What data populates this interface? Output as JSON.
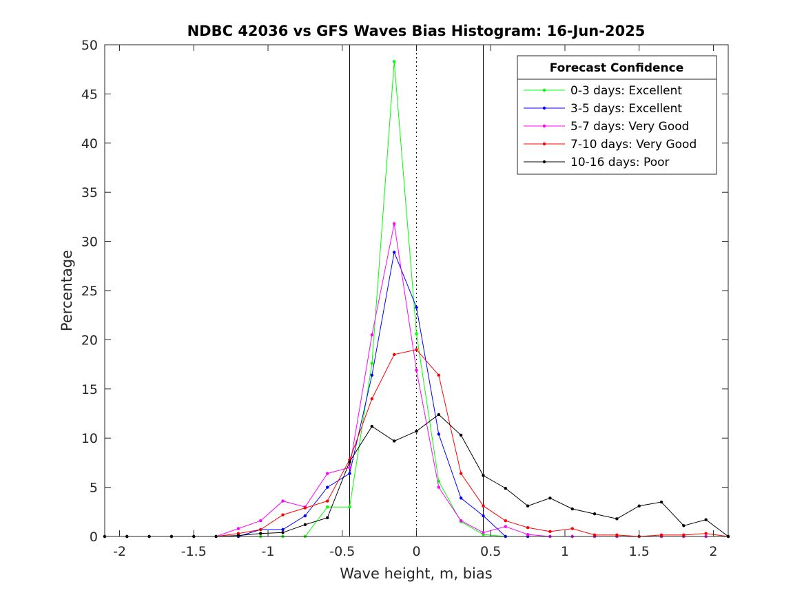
{
  "chart_data": {
    "type": "line",
    "title": "NDBC 42036 vs GFS Waves Bias Histogram: 16-Jun-2025",
    "xlabel": "Wave height, m, bias",
    "ylabel": "Percentage",
    "xlim": [
      -2.1,
      2.1
    ],
    "ylim": [
      0,
      50
    ],
    "xticks": [
      -2,
      -1.5,
      -1,
      -0.5,
      0,
      0.5,
      1,
      1.5,
      2
    ],
    "xtick_labels": [
      "-2",
      "-1.5",
      "-1",
      "-0.5",
      "0",
      "0.5",
      "1",
      "1.5",
      "2"
    ],
    "yticks": [
      0,
      5,
      10,
      15,
      20,
      25,
      30,
      35,
      40,
      45,
      50
    ],
    "ytick_labels": [
      "0",
      "5",
      "10",
      "15",
      "20",
      "25",
      "30",
      "35",
      "40",
      "45",
      "50"
    ],
    "grid": false,
    "legend": {
      "title": "Forecast Confidence",
      "placement": "top-right"
    },
    "reference_lines": {
      "solid_x": [
        -0.45,
        0.45
      ],
      "dotted_x": [
        0
      ]
    },
    "x": [
      -2.1,
      -1.95,
      -1.8,
      -1.65,
      -1.5,
      -1.35,
      -1.2,
      -1.05,
      -0.9,
      -0.75,
      -0.6,
      -0.45,
      -0.3,
      -0.15,
      0,
      0.15,
      0.3,
      0.45,
      0.6,
      0.75,
      0.9,
      1.05,
      1.2,
      1.35,
      1.5,
      1.65,
      1.8,
      1.95,
      2.1
    ],
    "series": [
      {
        "name": "0-3 days: Excellent",
        "color": "#00ff00",
        "values": [
          0,
          0,
          0,
          0,
          0,
          0,
          0,
          0,
          0,
          0,
          3.0,
          3.0,
          17.6,
          48.3,
          20.6,
          5.6,
          1.5,
          0.2,
          0,
          0,
          0,
          0,
          0,
          0,
          0,
          0,
          0,
          0,
          0
        ]
      },
      {
        "name": "3-5 days: Excellent",
        "color": "#0000ff",
        "values": [
          0,
          0,
          0,
          0,
          0,
          0,
          0,
          0.7,
          0.7,
          2.1,
          5.0,
          6.4,
          16.4,
          28.9,
          23.3,
          10.4,
          3.9,
          2.1,
          0,
          0,
          0,
          0,
          0,
          0,
          0,
          0,
          0,
          0,
          0
        ]
      },
      {
        "name": "5-7 days: Very Good",
        "color": "#ff00ff",
        "values": [
          0,
          0,
          0,
          0,
          0,
          0,
          0.8,
          1.6,
          3.6,
          3.0,
          6.4,
          7.0,
          20.5,
          31.8,
          16.9,
          5.0,
          1.6,
          0.4,
          1.0,
          0.2,
          0,
          0,
          0,
          0,
          0,
          0,
          0,
          0,
          0
        ]
      },
      {
        "name": "7-10 days: Very Good",
        "color": "#ff0000",
        "values": [
          0,
          0,
          0,
          0,
          0,
          0,
          0.3,
          0.7,
          2.2,
          2.9,
          3.6,
          7.8,
          14.0,
          18.5,
          19.0,
          16.4,
          6.4,
          3.1,
          1.6,
          0.9,
          0.5,
          0.8,
          0.15,
          0.15,
          0,
          0.15,
          0.15,
          0.3,
          0
        ]
      },
      {
        "name": "10-16 days: Poor",
        "color": "#000000",
        "values": [
          0,
          0,
          0,
          0,
          0,
          0,
          0.1,
          0.3,
          0.4,
          1.2,
          1.9,
          7.6,
          11.2,
          9.7,
          10.7,
          12.4,
          10.3,
          6.2,
          4.9,
          3.1,
          3.9,
          2.8,
          2.3,
          1.8,
          3.1,
          3.5,
          1.1,
          1.7,
          0
        ]
      }
    ]
  }
}
